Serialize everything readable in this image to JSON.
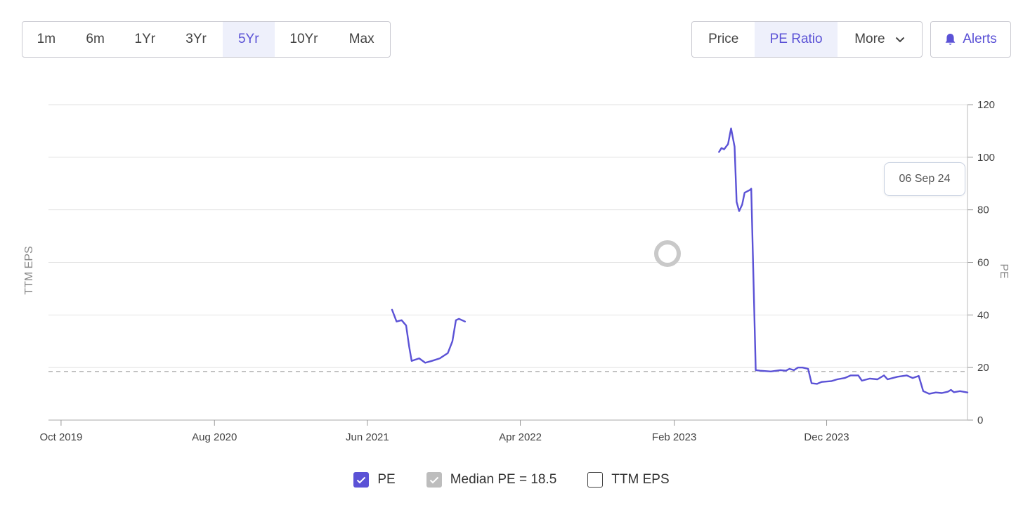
{
  "range_buttons": [
    {
      "label": "1m",
      "active": false
    },
    {
      "label": "6m",
      "active": false
    },
    {
      "label": "1Yr",
      "active": false
    },
    {
      "label": "3Yr",
      "active": false
    },
    {
      "label": "5Yr",
      "active": true
    },
    {
      "label": "10Yr",
      "active": false
    },
    {
      "label": "Max",
      "active": false
    }
  ],
  "view_buttons": [
    {
      "label": "Price",
      "active": false
    },
    {
      "label": "PE Ratio",
      "active": true
    },
    {
      "label": "More",
      "active": false,
      "icon": "chevron-down-icon"
    }
  ],
  "alerts": {
    "label": "Alerts",
    "icon": "bell-icon"
  },
  "tooltip": {
    "date": "06 Sep 24"
  },
  "legend": [
    {
      "label": "PE",
      "checked": true
    },
    {
      "label": "Median PE = 18.5",
      "checked": true
    },
    {
      "label": "TTM EPS",
      "checked": false
    }
  ],
  "colors": {
    "accent": "#5b52d6",
    "median": "#bdbdbd",
    "grid": "#e2e2e2"
  },
  "chart_data": {
    "type": "line",
    "title": "",
    "xlabel": "",
    "ylabel_left": "TTM EPS",
    "ylabel_right": "PE",
    "x_ticks": [
      "Oct 2019",
      "Aug 2020",
      "Jun 2021",
      "Apr 2022",
      "Feb 2023",
      "Dec 2023"
    ],
    "x_range": [
      "2019-09-06",
      "2024-09-06"
    ],
    "y_ticks": [
      0,
      20,
      40,
      60,
      80,
      100,
      120
    ],
    "ylim": [
      0,
      120
    ],
    "median": 18.5,
    "grid": true,
    "legend_position": "bottom",
    "series": [
      {
        "name": "PE",
        "segments": [
          [
            [
              "2021-07-20",
              42
            ],
            [
              "2021-07-29",
              37.5
            ],
            [
              "2021-08-08",
              38
            ],
            [
              "2021-08-17",
              36
            ],
            [
              "2021-08-23",
              28
            ],
            [
              "2021-08-28",
              22.5
            ],
            [
              "2021-09-12",
              23.5
            ],
            [
              "2021-09-24",
              21.8
            ],
            [
              "2021-10-07",
              22.5
            ],
            [
              "2021-10-23",
              23.5
            ],
            [
              "2021-11-08",
              25.5
            ],
            [
              "2021-11-17",
              30
            ],
            [
              "2021-11-24",
              38
            ],
            [
              "2021-11-30",
              38.5
            ],
            [
              "2021-12-12",
              37.5
            ]
          ],
          [
            [
              "2023-05-01",
              102
            ],
            [
              "2023-05-06",
              103.5
            ],
            [
              "2023-05-11",
              103
            ],
            [
              "2023-05-19",
              105
            ],
            [
              "2023-05-25",
              111
            ],
            [
              "2023-06-01",
              104
            ],
            [
              "2023-06-05",
              83
            ],
            [
              "2023-06-10",
              79.5
            ],
            [
              "2023-06-16",
              82
            ],
            [
              "2023-06-21",
              86.5
            ],
            [
              "2023-06-31",
              87.5
            ],
            [
              "2023-07-04",
              88
            ],
            [
              "2023-07-13",
              19
            ],
            [
              "2023-07-22",
              18.8
            ],
            [
              "2023-08-12",
              18.5
            ],
            [
              "2023-08-31",
              19
            ],
            [
              "2023-09-11",
              18.8
            ],
            [
              "2023-09-18",
              19.5
            ],
            [
              "2023-09-27",
              19
            ],
            [
              "2023-10-05",
              20
            ],
            [
              "2023-10-14",
              20
            ],
            [
              "2023-10-25",
              19.5
            ],
            [
              "2023-11-01",
              14
            ],
            [
              "2023-11-12",
              13.8
            ],
            [
              "2023-11-21",
              14.5
            ],
            [
              "2023-12-10",
              14.8
            ],
            [
              "2023-12-22",
              15.5
            ],
            [
              "2024-01-06",
              16
            ],
            [
              "2024-01-18",
              17
            ],
            [
              "2024-02-02",
              17
            ],
            [
              "2024-02-09",
              15
            ],
            [
              "2024-02-25",
              15.8
            ],
            [
              "2024-03-11",
              15.5
            ],
            [
              "2024-03-24",
              17
            ],
            [
              "2024-03-31",
              15.5
            ],
            [
              "2024-04-20",
              16.5
            ],
            [
              "2024-05-08",
              17
            ],
            [
              "2024-05-20",
              16
            ],
            [
              "2024-06-01",
              16.8
            ],
            [
              "2024-06-10",
              11
            ],
            [
              "2024-06-22",
              10
            ],
            [
              "2024-07-05",
              10.5
            ],
            [
              "2024-07-17",
              10.3
            ],
            [
              "2024-07-29",
              10.8
            ],
            [
              "2024-08-04",
              11.5
            ],
            [
              "2024-08-10",
              10.6
            ],
            [
              "2024-08-22",
              11
            ],
            [
              "2024-09-06",
              10.5
            ]
          ]
        ]
      }
    ]
  }
}
